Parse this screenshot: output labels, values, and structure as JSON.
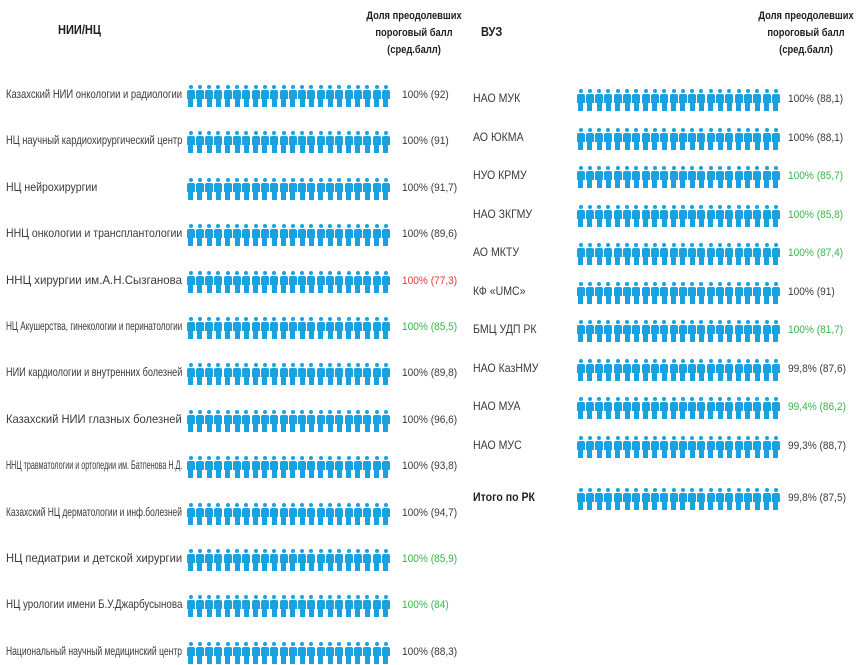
{
  "colors": {
    "icon": "#1aa1e0",
    "normal": "#3a3a3a",
    "good": "#39b54a",
    "bad": "#e53935"
  },
  "icon": "person-icon",
  "chart_data": [
    {
      "type": "table",
      "header": {
        "category": "НИИ/НЦ",
        "share_lines": [
          "Доля преодолевших",
          "пороговый балл",
          "(сред.балл)"
        ]
      },
      "rows": [
        {
          "label": "Казахский НИИ онкологии и радиологии",
          "value_text": "100% (92)",
          "share": 100,
          "avg_score": 92,
          "status": "normal"
        },
        {
          "label": "НЦ научный кардиохирургический центр",
          "value_text": "100% (91)",
          "share": 100,
          "avg_score": 91,
          "status": "normal"
        },
        {
          "label": "НЦ нейрохирургии",
          "value_text": "100% (91,7)",
          "share": 100,
          "avg_score": 91.7,
          "status": "normal"
        },
        {
          "label": "ННЦ онкологии и трансплантологии",
          "value_text": "100% (89,6)",
          "share": 100,
          "avg_score": 89.6,
          "status": "normal"
        },
        {
          "label": "ННЦ хирургии им.А.Н.Сызганова",
          "value_text": "100% (77,3)",
          "share": 100,
          "avg_score": 77.3,
          "status": "bad"
        },
        {
          "label": "НЦ Акушерства, гинекологии и перинатологии",
          "value_text": "100% (85,5)",
          "share": 100,
          "avg_score": 85.5,
          "status": "good"
        },
        {
          "label": "НИИ кардиологии и внутренних болезней",
          "value_text": "100% (89,8)",
          "share": 100,
          "avg_score": 89.8,
          "status": "normal"
        },
        {
          "label": "Казахский НИИ глазных болезней",
          "value_text": "100% (96,6)",
          "share": 100,
          "avg_score": 96.6,
          "status": "normal"
        },
        {
          "label": "ННЦ травматологии и ортопедии им. Батпенова Н.Д.",
          "value_text": "100% (93,8)",
          "share": 100,
          "avg_score": 93.8,
          "status": "normal"
        },
        {
          "label": "Казахский НЦ дерматологии и инф.болезней",
          "value_text": "100% (94,7)",
          "share": 100,
          "avg_score": 94.7,
          "status": "normal"
        },
        {
          "label": "НЦ педиатрии и детской хирургии",
          "value_text": "100% (85,9)",
          "share": 100,
          "avg_score": 85.9,
          "status": "good"
        },
        {
          "label": "НЦ урологии имени Б.У.Джарбусынова",
          "value_text": "100% (84)",
          "share": 100,
          "avg_score": 84,
          "status": "good"
        },
        {
          "label": "Национальный научный медицинский центр",
          "value_text": "100% (88,3)",
          "share": 100,
          "avg_score": 88.3,
          "status": "normal"
        }
      ]
    },
    {
      "type": "table",
      "header": {
        "category": "ВУЗ",
        "share_lines": [
          "Доля преодолевших",
          "пороговый балл",
          "(сред.балл)"
        ]
      },
      "rows": [
        {
          "label": "НАО МУК",
          "value_text": "100% (88,1)",
          "share": 100,
          "avg_score": 88.1,
          "status": "normal"
        },
        {
          "label": "АО ЮКМА",
          "value_text": "100% (88,1)",
          "share": 100,
          "avg_score": 88.1,
          "status": "normal"
        },
        {
          "label": "НУО КРМУ",
          "value_text": "100% (85,7)",
          "share": 100,
          "avg_score": 85.7,
          "status": "good"
        },
        {
          "label": "НАО ЗКГМУ",
          "value_text": "100% (85,8)",
          "share": 100,
          "avg_score": 85.8,
          "status": "good"
        },
        {
          "label": "АО МКТУ",
          "value_text": "100% (87,4)",
          "share": 100,
          "avg_score": 87.4,
          "status": "good"
        },
        {
          "label": "КФ «UMC»",
          "value_text": "100% (91)",
          "share": 100,
          "avg_score": 91,
          "status": "normal"
        },
        {
          "label": "БМЦ УДП РК",
          "value_text": "100% (81,7)",
          "share": 100,
          "avg_score": 81.7,
          "status": "good"
        },
        {
          "label": "НАО КазНМУ",
          "value_text": "99,8% (87,6)",
          "share": 99.8,
          "avg_score": 87.6,
          "status": "normal"
        },
        {
          "label": "НАО МУА",
          "value_text": "99,4% (86,2)",
          "share": 99.4,
          "avg_score": 86.2,
          "status": "good"
        },
        {
          "label": "НАО МУС",
          "value_text": "99,3% (88,7)",
          "share": 99.3,
          "avg_score": 88.7,
          "status": "normal"
        },
        {
          "label": "Итого по РК",
          "value_text": "99,8% (87,5)",
          "share": 99.8,
          "avg_score": 87.5,
          "status": "normal",
          "bold": true
        }
      ]
    }
  ]
}
